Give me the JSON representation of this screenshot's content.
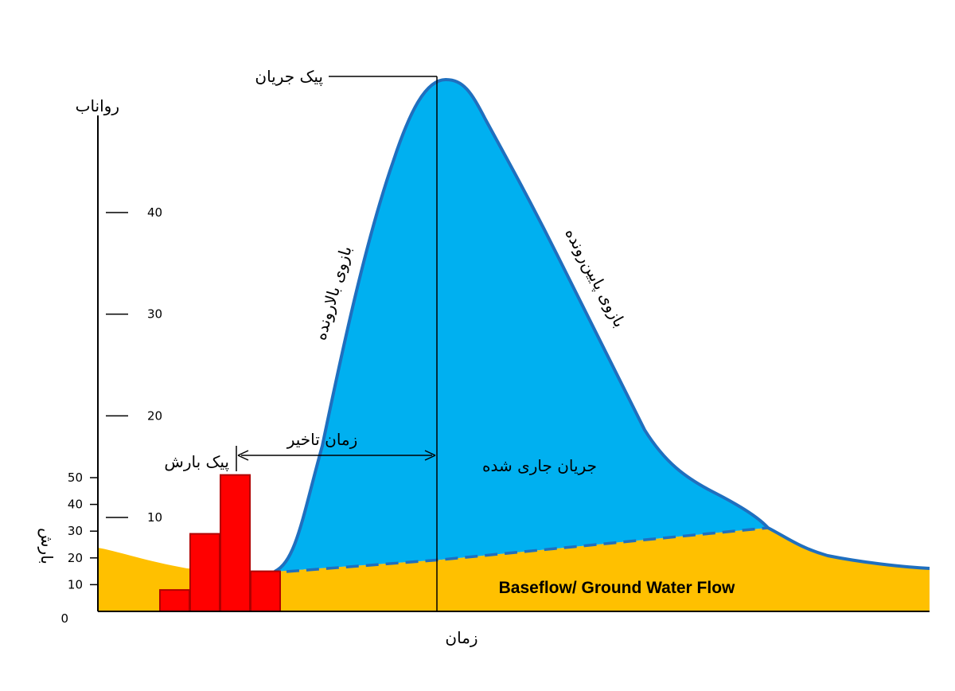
{
  "colors": {
    "runoff_fill": "#00b0f0",
    "runoff_stroke": "#1f6fbf",
    "baseflow_fill": "#ffc000",
    "rain_fill": "#ff0000",
    "rain_stroke": "#b00000",
    "axis": "#000000"
  },
  "runoff_axis": {
    "title": "رواناب",
    "ticks": [
      {
        "value": 10,
        "label": "10"
      },
      {
        "value": 20,
        "label": "20"
      },
      {
        "value": 30,
        "label": "30"
      },
      {
        "value": 40,
        "label": "40"
      }
    ]
  },
  "rain_axis": {
    "title": "بارش",
    "ticks": [
      {
        "value": 0,
        "label": "0"
      },
      {
        "value": 10,
        "label": "10"
      },
      {
        "value": 20,
        "label": "20"
      },
      {
        "value": 30,
        "label": "30"
      },
      {
        "value": 40,
        "label": "40"
      },
      {
        "value": 50,
        "label": "50"
      }
    ]
  },
  "x_axis": {
    "title": "زمان"
  },
  "rain_bars": [
    8,
    29,
    51,
    15
  ],
  "labels": {
    "peak_flow": "پیک جریان",
    "peak_rain": "پیک بارش",
    "lag_time": "زمان تاخیر",
    "rising_limb": "بازوی بالارونده",
    "falling_limb": "بازوی پایین‌رونده",
    "direct_runoff": "جریان جاری شده",
    "baseflow": "Baseflow/ Ground Water Flow"
  }
}
